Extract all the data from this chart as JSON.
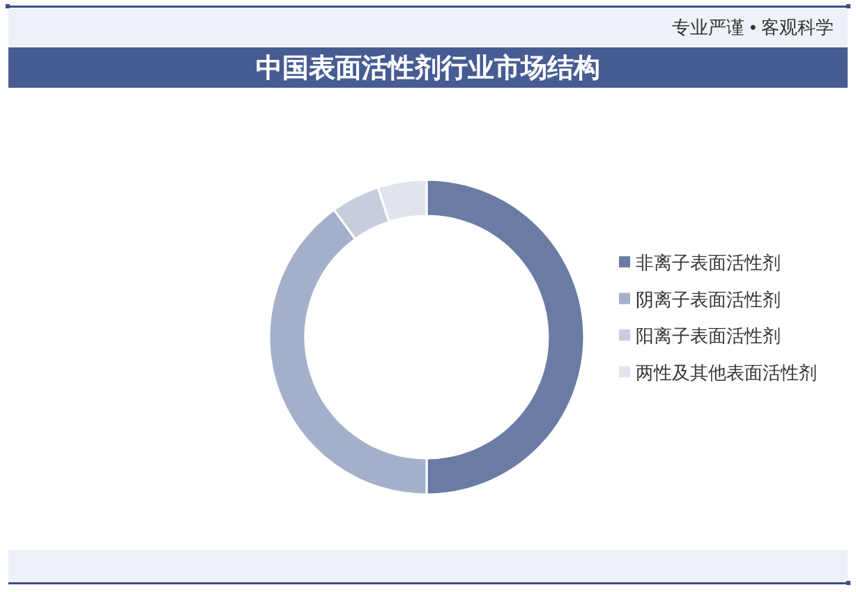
{
  "chart_data": {
    "type": "donut",
    "title": "中国表面活性剂行业市场结构",
    "annotations": [
      "专业严谨 • 客观科学"
    ],
    "categories": [
      "非离子表面活性剂",
      "阴离子表面活性剂",
      "阳离子表面活性剂",
      "两性及其他表面活性剂"
    ],
    "values": [
      50,
      40,
      5,
      5
    ],
    "colors": [
      "#6a7ca4",
      "#a4b0c9",
      "#c6cddd",
      "#e0e4ed"
    ],
    "legend": "right"
  }
}
